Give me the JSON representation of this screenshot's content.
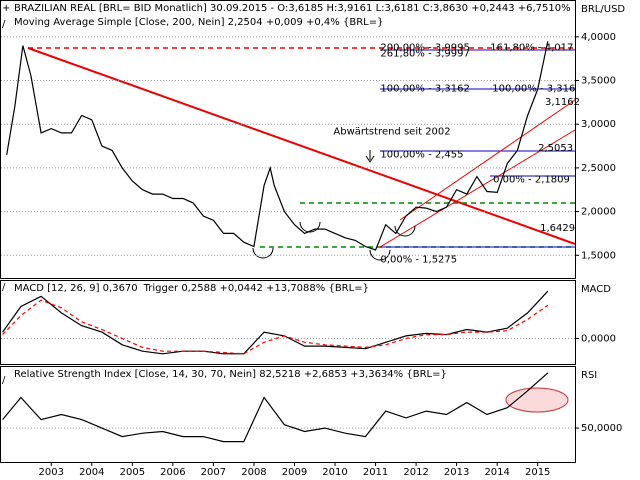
{
  "chart_data": [
    {
      "type": "line",
      "title": "BRAZILIAN REAL [BRL= BID Monatlich] 30.09.2015 - O:3,6185 H:3,9161 L:3,6181 C:3,8630 +0,2443 +6,7510%",
      "subtitle": "Moving Average Simple [Close, 200, Nein] 2,2504 +0,009 +0,4% {BRL=}",
      "y_label": "BRL/USD",
      "xlim": [
        2002.26,
        2016.42
      ],
      "ylim": [
        1.24,
        4.41
      ],
      "yticks": [
        {
          "value": 1.5,
          "label": "1,5000"
        },
        {
          "value": 2,
          "label": "2,0000"
        },
        {
          "value": 2.5,
          "label": "2,5000"
        },
        {
          "value": 3,
          "label": "3,0000"
        },
        {
          "value": 3.5,
          "label": "3,5000"
        },
        {
          "value": 4,
          "label": "4,0000"
        }
      ],
      "grid": true,
      "series": [
        {
          "color": "#000000",
          "x": [
            2002.4,
            2002.6,
            2002.8,
            2003.0,
            2003.25,
            2003.5,
            2003.75,
            2004.0,
            2004.25,
            2004.5,
            2004.75,
            2005.0,
            2005.25,
            2005.5,
            2005.75,
            2006.0,
            2006.25,
            2006.5,
            2006.75,
            2007.0,
            2007.25,
            2007.5,
            2007.75,
            2008.0,
            2008.25,
            2008.5,
            2008.75,
            2008.9,
            2009.0,
            2009.25,
            2009.5,
            2009.75,
            2010.0,
            2010.25,
            2010.5,
            2010.75,
            2011.0,
            2011.25,
            2011.5,
            2011.75,
            2012.0,
            2012.25,
            2012.5,
            2012.75,
            2013.0,
            2013.25,
            2013.5,
            2013.75,
            2014.0,
            2014.25,
            2014.5,
            2014.75,
            2015.0,
            2015.25,
            2015.5,
            2015.75
          ],
          "values": [
            2.65,
            3.2,
            3.9,
            3.55,
            2.9,
            2.95,
            2.9,
            2.9,
            3.1,
            3.05,
            2.75,
            2.7,
            2.5,
            2.35,
            2.25,
            2.2,
            2.2,
            2.15,
            2.15,
            2.1,
            1.95,
            1.9,
            1.75,
            1.75,
            1.65,
            1.6,
            2.3,
            2.5,
            2.3,
            2.0,
            1.85,
            1.75,
            1.8,
            1.8,
            1.75,
            1.7,
            1.67,
            1.6,
            1.56,
            1.85,
            1.75,
            1.95,
            2.05,
            2.04,
            2.0,
            2.05,
            2.25,
            2.2,
            2.4,
            2.23,
            2.22,
            2.55,
            2.7,
            3.1,
            3.4,
            3.95
          ]
        }
      ],
      "annotations": [
        {
          "label": "Abwärtstrend seit 2002",
          "x": 2010.46,
          "y": 2.918,
          "color": "#000000"
        },
        {
          "label": "200,00% - 3,9995",
          "x": 2011.62,
          "y": 3.88,
          "color": "#0000cc"
        },
        {
          "label": "261,80% - 3,9997",
          "x": 2011.62,
          "y": 3.81,
          "color": "#0000cc"
        },
        {
          "label": "161,80% - 4,017",
          "x": 2014.33,
          "y": 3.88,
          "color": "#0000cc"
        },
        {
          "label": "100,00% - 3,3162",
          "x": 2011.62,
          "y": 3.411,
          "color": "#0000cc"
        },
        {
          "label": "100,00% - 3,316",
          "x": 2014.38,
          "y": 3.411,
          "color": "#0000cc"
        },
        {
          "label": "3,1162",
          "x": 2015.68,
          "y": 3.255,
          "color": "#cc0000"
        },
        {
          "label": "100,00% - 2,455",
          "x": 2011.62,
          "y": 2.654,
          "color": "#0000cc"
        },
        {
          "label": "2,5053",
          "x": 2015.51,
          "y": 2.726,
          "color": "#cc0000"
        },
        {
          "label": "0,00% - 2,1809",
          "x": 2014.4,
          "y": 2.365,
          "color": "#0000cc"
        },
        {
          "label": "1,6429",
          "x": 2015.56,
          "y": 1.812,
          "color": "#cc0000"
        },
        {
          "label": "0,00% - 1,5275",
          "x": 2011.62,
          "y": 1.452,
          "color": "#0000cc"
        }
      ]
    },
    {
      "type": "line",
      "title": "MACD [12, 26, 9] 0,3670",
      "subtitle": "Trigger 0,2588 +0,0442 +13,7088% {BRL=}",
      "y_label": "MACD",
      "xlim": [
        2002.26,
        2016.42
      ],
      "ylim": [
        -0.2,
        0.45
      ],
      "yticks": [
        {
          "value": 0,
          "label": "0,0000"
        }
      ],
      "grid": true,
      "series": [
        {
          "color": "#000000",
          "x": [
            2002.3,
            2002.75,
            2003.25,
            2003.75,
            2004.25,
            2004.75,
            2005.25,
            2005.75,
            2006.25,
            2006.75,
            2007.25,
            2007.75,
            2008.25,
            2008.75,
            2009.25,
            2009.75,
            2010.25,
            2010.75,
            2011.25,
            2011.75,
            2012.25,
            2012.75,
            2013.25,
            2013.75,
            2014.25,
            2014.75,
            2015.25,
            2015.75
          ],
          "values": [
            0.05,
            0.25,
            0.33,
            0.2,
            0.1,
            0.05,
            -0.05,
            -0.1,
            -0.12,
            -0.1,
            -0.1,
            -0.12,
            -0.12,
            0.05,
            0.02,
            -0.06,
            -0.06,
            -0.07,
            -0.08,
            -0.03,
            0.02,
            0.04,
            0.03,
            0.07,
            0.05,
            0.08,
            0.2,
            0.37
          ]
        },
        {
          "color": "#ff0000",
          "dashed": true,
          "x": [
            2002.3,
            2002.75,
            2003.25,
            2003.75,
            2004.25,
            2004.75,
            2005.25,
            2005.75,
            2006.25,
            2006.75,
            2007.25,
            2007.75,
            2008.25,
            2008.75,
            2009.25,
            2009.75,
            2010.25,
            2010.75,
            2011.25,
            2011.75,
            2012.25,
            2012.75,
            2013.25,
            2013.75,
            2014.25,
            2014.75,
            2015.25,
            2015.75
          ],
          "values": [
            0.03,
            0.18,
            0.3,
            0.24,
            0.13,
            0.07,
            0.0,
            -0.07,
            -0.1,
            -0.1,
            -0.1,
            -0.11,
            -0.12,
            -0.03,
            0.02,
            -0.03,
            -0.05,
            -0.06,
            -0.07,
            -0.05,
            0.0,
            0.03,
            0.03,
            0.05,
            0.05,
            0.06,
            0.15,
            0.26
          ]
        }
      ]
    },
    {
      "type": "line",
      "title": "Relative Strength Index [Close, 14, 30, 70, Nein] 82,5218 +2,6853 +3,3634% {BRL=}",
      "y_label": "RSI",
      "xlim": [
        2002.26,
        2016.42
      ],
      "ylim": [
        30,
        86
      ],
      "yticks": [
        {
          "value": 50,
          "label": "50,0000"
        }
      ],
      "xticks": [
        {
          "value": 2003.5,
          "label": "2003"
        },
        {
          "value": 2004.5,
          "label": "2004"
        },
        {
          "value": 2005.5,
          "label": "2005"
        },
        {
          "value": 2006.5,
          "label": "2006"
        },
        {
          "value": 2007.5,
          "label": "2007"
        },
        {
          "value": 2008.5,
          "label": "2008"
        },
        {
          "value": 2009.5,
          "label": "2009"
        },
        {
          "value": 2010.5,
          "label": "2010"
        },
        {
          "value": 2011.5,
          "label": "2011"
        },
        {
          "value": 2012.5,
          "label": "2012"
        },
        {
          "value": 2013.5,
          "label": "2013"
        },
        {
          "value": 2014.5,
          "label": "2014"
        },
        {
          "value": 2015.5,
          "label": "2015"
        }
      ],
      "grid": true,
      "series": [
        {
          "color": "#000000",
          "x": [
            2002.3,
            2002.75,
            2003.25,
            2003.75,
            2004.25,
            2004.75,
            2005.25,
            2005.75,
            2006.25,
            2006.75,
            2007.25,
            2007.75,
            2008.25,
            2008.75,
            2009.25,
            2009.75,
            2010.25,
            2010.75,
            2011.25,
            2011.75,
            2012.25,
            2012.75,
            2013.25,
            2013.75,
            2014.25,
            2014.75,
            2015.25,
            2015.75
          ],
          "values": [
            55,
            68,
            55,
            58,
            55,
            50,
            45,
            47,
            48,
            45,
            45,
            42,
            42,
            68,
            52,
            48,
            50,
            47,
            45,
            60,
            56,
            60,
            58,
            65,
            58,
            62,
            72,
            82.5
          ]
        }
      ]
    }
  ]
}
